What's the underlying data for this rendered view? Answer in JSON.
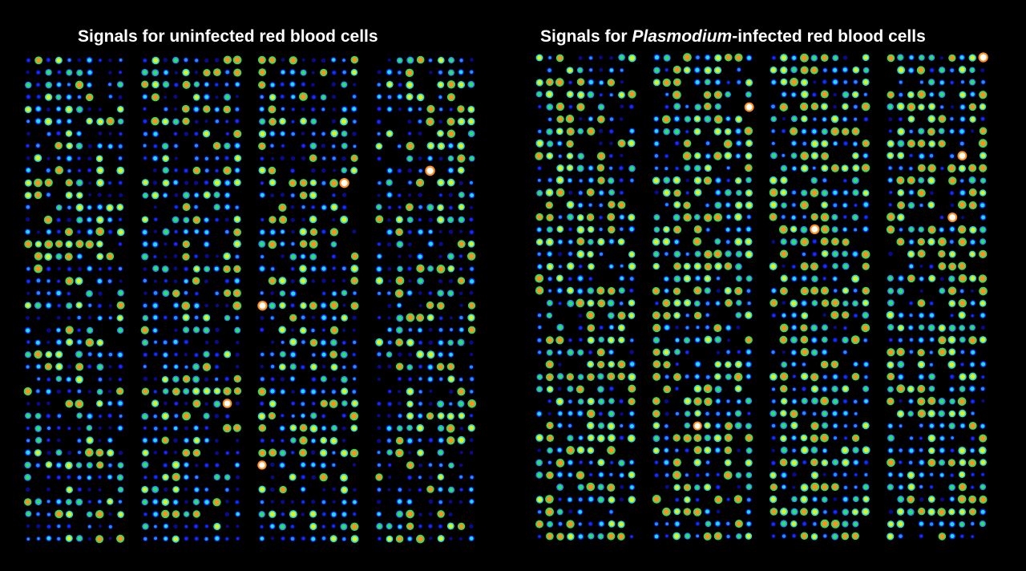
{
  "left_panel": {
    "title": "Signals for uninfected red blood cells"
  },
  "right_panel": {
    "title_prefix": "Signals for ",
    "title_italic": "Plasmodium",
    "title_suffix": "-infected red blood cells"
  },
  "colors": {
    "background": "#000000",
    "heat_scale": [
      "#0a0a8c",
      "#1030ff",
      "#1e90ff",
      "#20e0e0",
      "#30e060",
      "#e0f020",
      "#ff9020",
      "#ff2010",
      "#ffffff"
    ]
  }
}
